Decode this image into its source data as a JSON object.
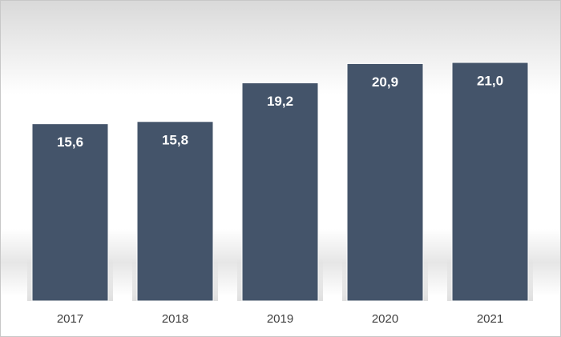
{
  "chart_data": {
    "type": "bar",
    "categories": [
      "2017",
      "2018",
      "2019",
      "2020",
      "2021"
    ],
    "values": [
      15.6,
      15.8,
      19.2,
      20.9,
      21.0
    ],
    "value_labels": [
      "15,6",
      "15,8",
      "19,2",
      "20,9",
      "21,0"
    ],
    "color": "#44546a"
  }
}
